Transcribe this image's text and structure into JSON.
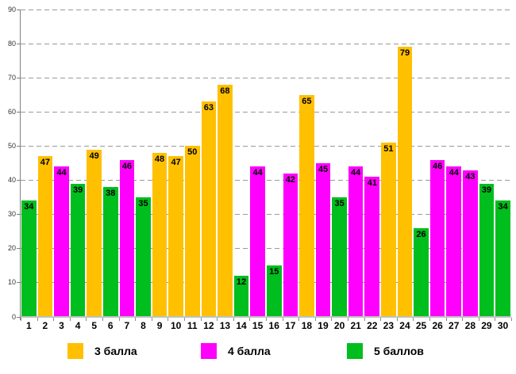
{
  "chart_data": {
    "type": "bar",
    "title": "",
    "xlabel": "",
    "ylabel": "",
    "categories": [
      "1",
      "2",
      "3",
      "4",
      "5",
      "6",
      "7",
      "8",
      "9",
      "10",
      "11",
      "12",
      "13",
      "14",
      "15",
      "16",
      "17",
      "18",
      "19",
      "20",
      "21",
      "22",
      "23",
      "24",
      "25",
      "26",
      "27",
      "28",
      "29",
      "30"
    ],
    "values": [
      34,
      47,
      44,
      39,
      49,
      38,
      46,
      35,
      48,
      47,
      50,
      63,
      68,
      12,
      44,
      15,
      42,
      65,
      45,
      35,
      44,
      41,
      51,
      79,
      26,
      46,
      44,
      43,
      39,
      34
    ],
    "groups": [
      "5",
      "3",
      "4",
      "5",
      "3",
      "5",
      "4",
      "5",
      "3",
      "3",
      "3",
      "3",
      "3",
      "5",
      "4",
      "5",
      "4",
      "3",
      "4",
      "5",
      "4",
      "4",
      "3",
      "3",
      "5",
      "4",
      "4",
      "4",
      "5",
      "5"
    ],
    "legend": [
      {
        "score": "3",
        "label": "3 балла",
        "color": "#FFC000"
      },
      {
        "score": "4",
        "label": "4 балла",
        "color": "#FF00FF"
      },
      {
        "score": "5",
        "label": "5 баллов",
        "color": "#00BE1E"
      }
    ],
    "ylim": [
      0,
      90
    ],
    "yticks": [
      0,
      10,
      20,
      30,
      40,
      50,
      60,
      70,
      80,
      90
    ],
    "grid": "horizontal-dashed",
    "legend_position": "bottom",
    "value_labels": "inside-end"
  },
  "colors": {
    "background": "#ffffff",
    "gridline": "#999999",
    "y_axis": "#808080",
    "x_axis": "#c2c2c2",
    "tick": "#8c8c8c",
    "value_label": "#000000",
    "x_tick_label": "#000000",
    "y_tick_label": "#333333"
  }
}
